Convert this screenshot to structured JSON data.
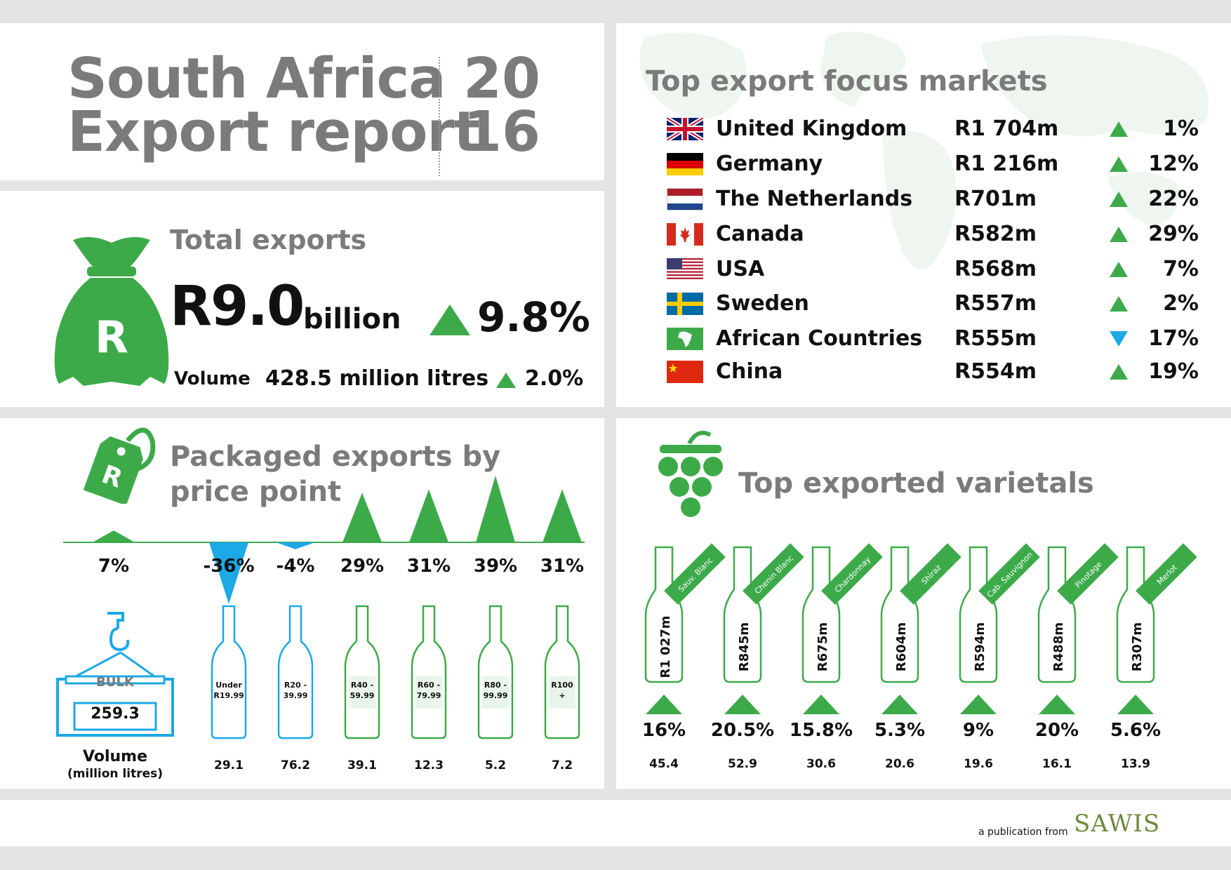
{
  "header": {
    "title_line1": "South Africa",
    "title_line2": "Export report",
    "year_line1": "20",
    "year_line2": "16"
  },
  "total_exports": {
    "title": "Total exports",
    "value": "R9.0",
    "unit": "billion",
    "change": "9.8%",
    "bag_symbol": "R",
    "volume_label": "Volume",
    "volume_value": "428.5 million litres",
    "volume_change": "2.0%"
  },
  "markets": {
    "title": "Top export focus markets",
    "rows": [
      {
        "country": "United Kingdom",
        "flag": "uk-flag",
        "value": "R1 704m",
        "trend": "up",
        "pct": "1%"
      },
      {
        "country": "Germany",
        "flag": "germany-flag",
        "value": "R1 216m",
        "trend": "up",
        "pct": "12%"
      },
      {
        "country": "The Netherlands",
        "flag": "netherlands-flag",
        "value": "R701m",
        "trend": "up",
        "pct": "22%"
      },
      {
        "country": "Canada",
        "flag": "canada-flag",
        "value": "R582m",
        "trend": "up",
        "pct": "29%"
      },
      {
        "country": "USA",
        "flag": "usa-flag",
        "value": "R568m",
        "trend": "up",
        "pct": "7%"
      },
      {
        "country": "Sweden",
        "flag": "sweden-flag",
        "value": "R557m",
        "trend": "up",
        "pct": "2%"
      },
      {
        "country": "African Countries",
        "flag": "africa-flag",
        "value": "R555m",
        "trend": "down",
        "pct": "17%"
      },
      {
        "country": "China",
        "flag": "china-flag",
        "value": "R554m",
        "trend": "up",
        "pct": "19%"
      }
    ]
  },
  "price_point": {
    "title_line1": "Packaged exports by",
    "title_line2": "price point",
    "tag_symbol": "R",
    "bulk_label": "BULK",
    "bulk_value": "259.3",
    "volume_label": "Volume",
    "volume_unit": "(million litres)",
    "items": [
      {
        "label": "Bulk",
        "pct": "7%",
        "change": 7,
        "volume": "259.3"
      },
      {
        "label": "Under R19.99",
        "lines": [
          "Under",
          "R19.99"
        ],
        "pct": "-36%",
        "change": -36,
        "volume": "29.1"
      },
      {
        "label": "R20 - 39.99",
        "lines": [
          "R20 -",
          "39.99"
        ],
        "pct": "-4%",
        "change": -4,
        "volume": "76.2"
      },
      {
        "label": "R40 - 59.99",
        "lines": [
          "R40 -",
          "59.99"
        ],
        "pct": "29%",
        "change": 29,
        "volume": "39.1"
      },
      {
        "label": "R60 - 79.99",
        "lines": [
          "R60 -",
          "79.99"
        ],
        "pct": "31%",
        "change": 31,
        "volume": "12.3"
      },
      {
        "label": "R80 - 99.99",
        "lines": [
          "R80 -",
          "99.99"
        ],
        "pct": "39%",
        "change": 39,
        "volume": "5.2"
      },
      {
        "label": "R100 +",
        "lines": [
          "R100",
          "+"
        ],
        "pct": "31%",
        "change": 31,
        "volume": "7.2"
      }
    ]
  },
  "varietals": {
    "title": "Top exported varietals",
    "items": [
      {
        "name": "Sauv. Blanc",
        "value": "R1 027m",
        "pct": "16%",
        "volume": "45.4"
      },
      {
        "name": "Chenin Blanc",
        "value": "R845m",
        "pct": "20.5%",
        "volume": "52.9"
      },
      {
        "name": "Chardonnay",
        "value": "R675m",
        "pct": "15.8%",
        "volume": "30.6"
      },
      {
        "name": "Shiraz",
        "value": "R604m",
        "pct": "5.3%",
        "volume": "20.6"
      },
      {
        "name": "Cab. Sauvignon",
        "value": "R594m",
        "pct": "9%",
        "volume": "19.6"
      },
      {
        "name": "Pinotage",
        "value": "R488m",
        "pct": "20%",
        "volume": "16.1"
      },
      {
        "name": "Merlot",
        "value": "R307m",
        "pct": "5.6%",
        "volume": "13.9"
      }
    ]
  },
  "footer": {
    "publication_text": "a publication from",
    "brand": "SAWIS"
  },
  "colors": {
    "green": "#3daa4a",
    "blue": "#1ca9e6",
    "grey_title": "#7b7b7b",
    "background": "#e4e4e4"
  }
}
